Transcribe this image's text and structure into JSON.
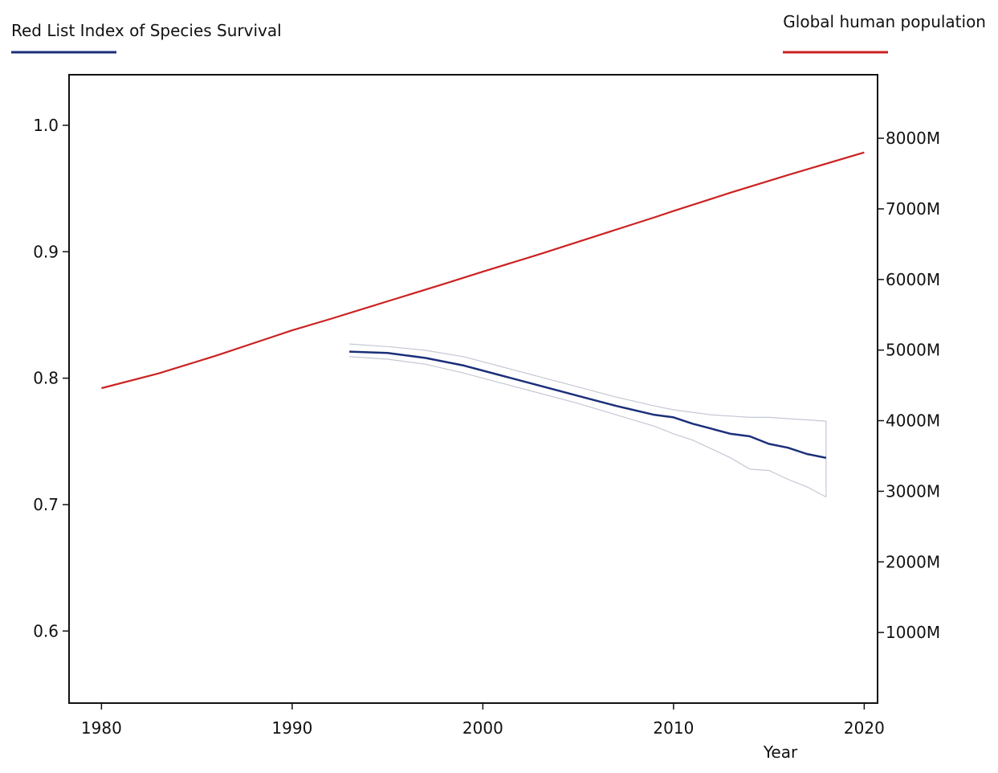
{
  "chart_data": {
    "type": "line",
    "xlabel": "Year",
    "x_ticks": [
      1980,
      1990,
      2000,
      2010,
      2020
    ],
    "xlim": [
      1978.3,
      2020.7
    ],
    "y_left": {
      "ticks": [
        "1.0",
        "0.9",
        "0.8",
        "0.7",
        "0.6"
      ],
      "tick_values": [
        1.0,
        0.9,
        0.8,
        0.7,
        0.6
      ],
      "range": [
        0.543,
        1.04
      ]
    },
    "y_right": {
      "ticks": [
        "8000M",
        "7000M",
        "6000M",
        "5000M",
        "4000M",
        "3000M",
        "2000M",
        "1000M"
      ],
      "tick_values": [
        8000,
        7000,
        6000,
        5000,
        4000,
        3000,
        2000,
        1000
      ],
      "range": [
        0,
        8900
      ]
    },
    "series": [
      {
        "name": "Red List Index of Species Survival",
        "color": "#1b2f7a",
        "axis": "left",
        "x": [
          1993,
          1995,
          1997,
          1999,
          2001,
          2003,
          2005,
          2007,
          2009,
          2010,
          2011,
          2012,
          2013,
          2014,
          2015,
          2016,
          2017,
          2018
        ],
        "y": [
          0.821,
          0.82,
          0.816,
          0.81,
          0.802,
          0.794,
          0.786,
          0.778,
          0.771,
          0.769,
          0.764,
          0.76,
          0.756,
          0.754,
          0.748,
          0.745,
          0.74,
          0.737
        ],
        "upper": [
          0.827,
          0.825,
          0.822,
          0.817,
          0.809,
          0.801,
          0.793,
          0.785,
          0.778,
          0.775,
          0.773,
          0.771,
          0.77,
          0.769,
          0.769,
          0.768,
          0.767,
          0.766
        ],
        "lower": [
          0.817,
          0.815,
          0.811,
          0.804,
          0.796,
          0.788,
          0.78,
          0.771,
          0.762,
          0.756,
          0.751,
          0.744,
          0.737,
          0.728,
          0.727,
          0.72,
          0.714,
          0.706
        ]
      },
      {
        "name": "Global human population",
        "color": "#cc2222",
        "axis": "right",
        "x": [
          1980,
          1983,
          1986,
          1989,
          1990,
          1992,
          1995,
          1998,
          2000,
          2003,
          2006,
          2009,
          2010,
          2013,
          2016,
          2020
        ],
        "y": [
          4460,
          4670,
          4920,
          5190,
          5280,
          5440,
          5690,
          5940,
          6110,
          6360,
          6620,
          6880,
          6970,
          7230,
          7480,
          7800
        ]
      }
    ]
  }
}
